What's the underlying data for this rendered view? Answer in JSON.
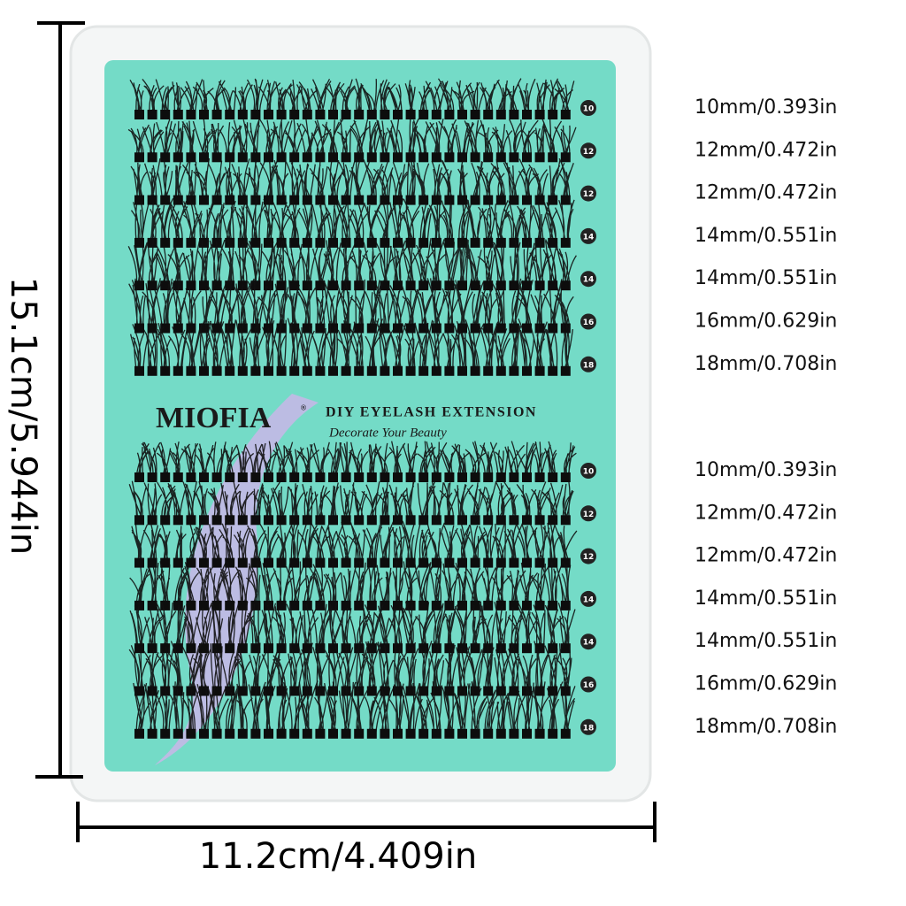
{
  "height_label": "15.1cm/5.944in",
  "width_label": "11.2cm/4.409in",
  "brand": {
    "name": "MIOFIA",
    "mark": "®",
    "product": "DIY EYELASH EXTENSION",
    "slogan": "Decorate Your Beauty"
  },
  "groups": [
    {
      "rows": [
        {
          "badge": "10",
          "label": "10mm/0.393in"
        },
        {
          "badge": "12",
          "label": "12mm/0.472in"
        },
        {
          "badge": "12",
          "label": "12mm/0.472in"
        },
        {
          "badge": "14",
          "label": "14mm/0.551in"
        },
        {
          "badge": "14",
          "label": "14mm/0.551in"
        },
        {
          "badge": "16",
          "label": "16mm/0.629in"
        },
        {
          "badge": "18",
          "label": "18mm/0.708in"
        }
      ]
    },
    {
      "rows": [
        {
          "badge": "10",
          "label": "10mm/0.393in"
        },
        {
          "badge": "12",
          "label": "12mm/0.472in"
        },
        {
          "badge": "12",
          "label": "12mm/0.472in"
        },
        {
          "badge": "14",
          "label": "14mm/0.551in"
        },
        {
          "badge": "14",
          "label": "14mm/0.551in"
        },
        {
          "badge": "16",
          "label": "16mm/0.629in"
        },
        {
          "badge": "18",
          "label": "18mm/0.708in"
        }
      ]
    }
  ]
}
